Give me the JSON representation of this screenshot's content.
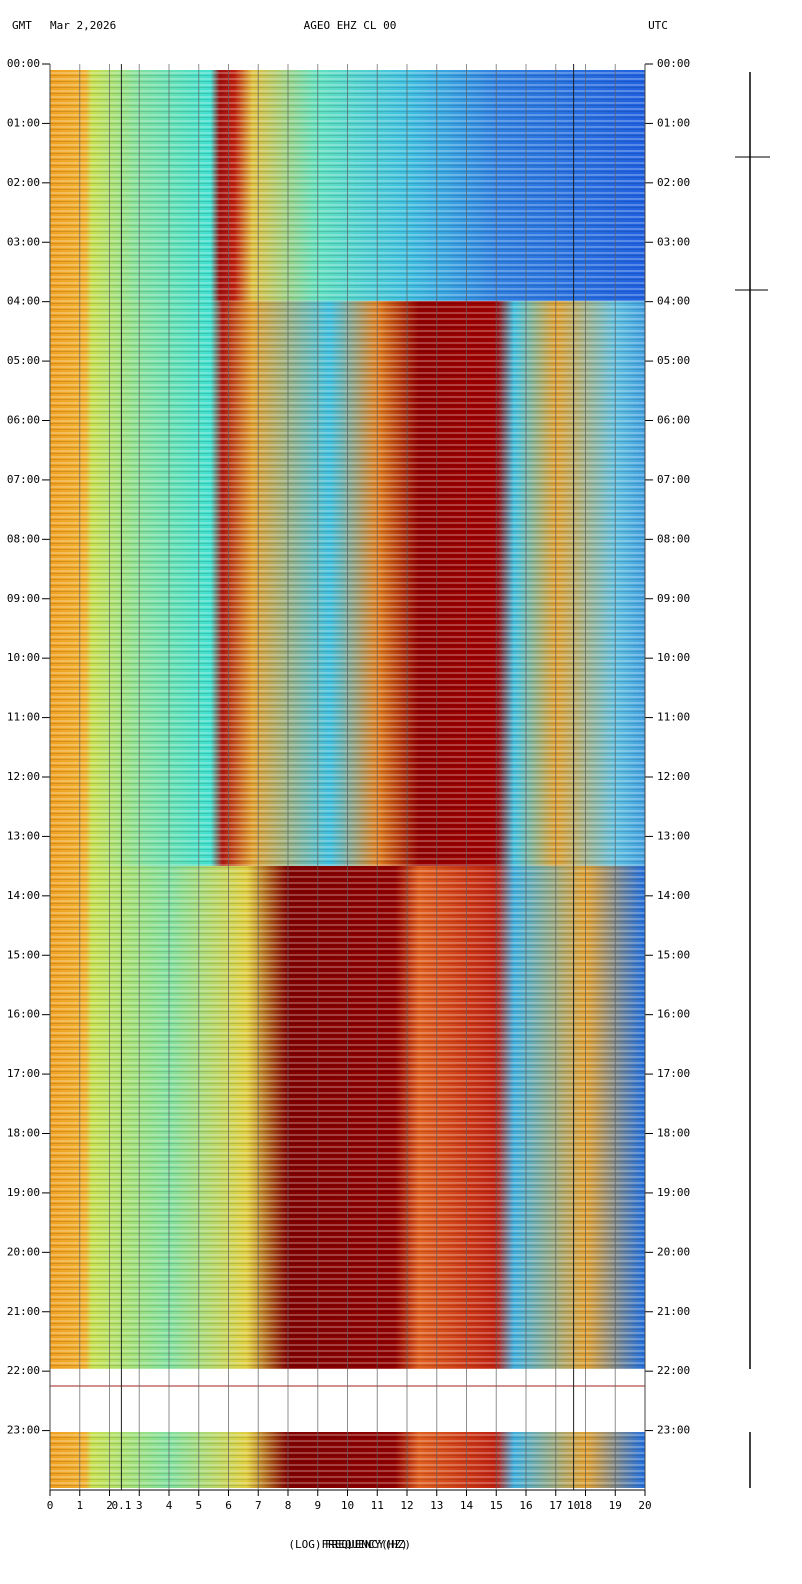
{
  "chart_data": {
    "type": "spectrogram",
    "header_left": "GMT",
    "date": "Mar 2,2026",
    "title": "AGEO EHZ CL 00",
    "header_right": "UTC",
    "x_label": "(LOG)FREQUENCY(HZ)",
    "x_label_overlay": "FREQUENCY(HZ)",
    "xlim": [
      0,
      20
    ],
    "xticks": [
      0,
      1,
      2,
      3,
      4,
      5,
      6,
      7,
      8,
      9,
      10,
      11,
      12,
      13,
      14,
      15,
      16,
      17,
      18,
      19,
      20
    ],
    "log_xticks": [
      {
        "value": 2.4,
        "label": "0.1"
      },
      {
        "value": 17.6,
        "label": "10"
      }
    ],
    "ylim": [
      0,
      24
    ],
    "yticks": [
      {
        "value": 0,
        "label": "00:00"
      },
      {
        "value": 1,
        "label": "01:00"
      },
      {
        "value": 2,
        "label": "02:00"
      },
      {
        "value": 3,
        "label": "03:00"
      },
      {
        "value": 4,
        "label": "04:00"
      },
      {
        "value": 5,
        "label": "05:00"
      },
      {
        "value": 6,
        "label": "06:00"
      },
      {
        "value": 7,
        "label": "07:00"
      },
      {
        "value": 8,
        "label": "08:00"
      },
      {
        "value": 9,
        "label": "09:00"
      },
      {
        "value": 10,
        "label": "10:00"
      },
      {
        "value": 11,
        "label": "11:00"
      },
      {
        "value": 12,
        "label": "12:00"
      },
      {
        "value": 13,
        "label": "13:00"
      },
      {
        "value": 14,
        "label": "14:00"
      },
      {
        "value": 15,
        "label": "15:00"
      },
      {
        "value": 16,
        "label": "16:00"
      },
      {
        "value": 17,
        "label": "17:00"
      },
      {
        "value": 18,
        "label": "18:00"
      },
      {
        "value": 19,
        "label": "19:00"
      },
      {
        "value": 20,
        "label": "20:00"
      },
      {
        "value": 21,
        "label": "21:00"
      },
      {
        "value": 22,
        "label": "22:00"
      },
      {
        "value": 23,
        "label": "23:00"
      }
    ]
  }
}
